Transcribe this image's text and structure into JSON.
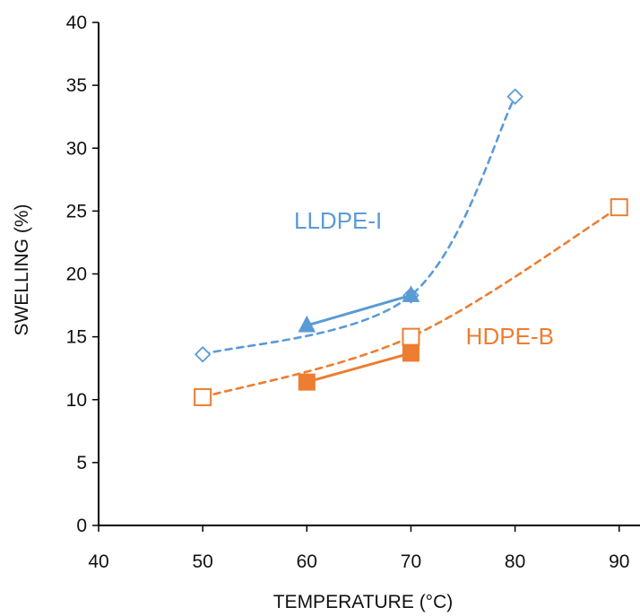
{
  "chart_data": {
    "type": "line",
    "xlabel": "TEMPERATURE (°C)",
    "ylabel": "SWELLING (%)",
    "xlim": [
      40,
      92
    ],
    "ylim": [
      0,
      40
    ],
    "x_ticks": [
      40,
      50,
      60,
      70,
      80,
      90
    ],
    "y_ticks": [
      0,
      5,
      10,
      15,
      20,
      25,
      30,
      35,
      40
    ],
    "grid": false,
    "annotations": [
      {
        "text": "LLDPE-I",
        "color": "#5b9bd5",
        "near_x": 63,
        "near_y": 23.6
      },
      {
        "text": "HDPE-B",
        "color": "#ed7d31",
        "near_x": 79.5,
        "near_y": 14.4
      }
    ],
    "series": [
      {
        "x": [
          50,
          70,
          80
        ],
        "y": [
          13.6,
          18.3,
          34.1
        ],
        "color": "#5b9bd5",
        "line": "dashed",
        "marker": "diamond-open",
        "smooth": true
      },
      {
        "x": [
          60,
          70
        ],
        "y": [
          15.9,
          18.3
        ],
        "color": "#5b9bd5",
        "line": "solid",
        "marker": "triangle-filled",
        "smooth": false
      },
      {
        "x": [
          50,
          70,
          90
        ],
        "y": [
          10.2,
          15.0,
          25.3
        ],
        "color": "#ed7d31",
        "line": "dashed",
        "marker": "square-open",
        "smooth": true
      },
      {
        "x": [
          60,
          70
        ],
        "y": [
          11.4,
          13.7
        ],
        "color": "#ed7d31",
        "line": "solid",
        "marker": "square-filled",
        "smooth": false
      }
    ]
  }
}
